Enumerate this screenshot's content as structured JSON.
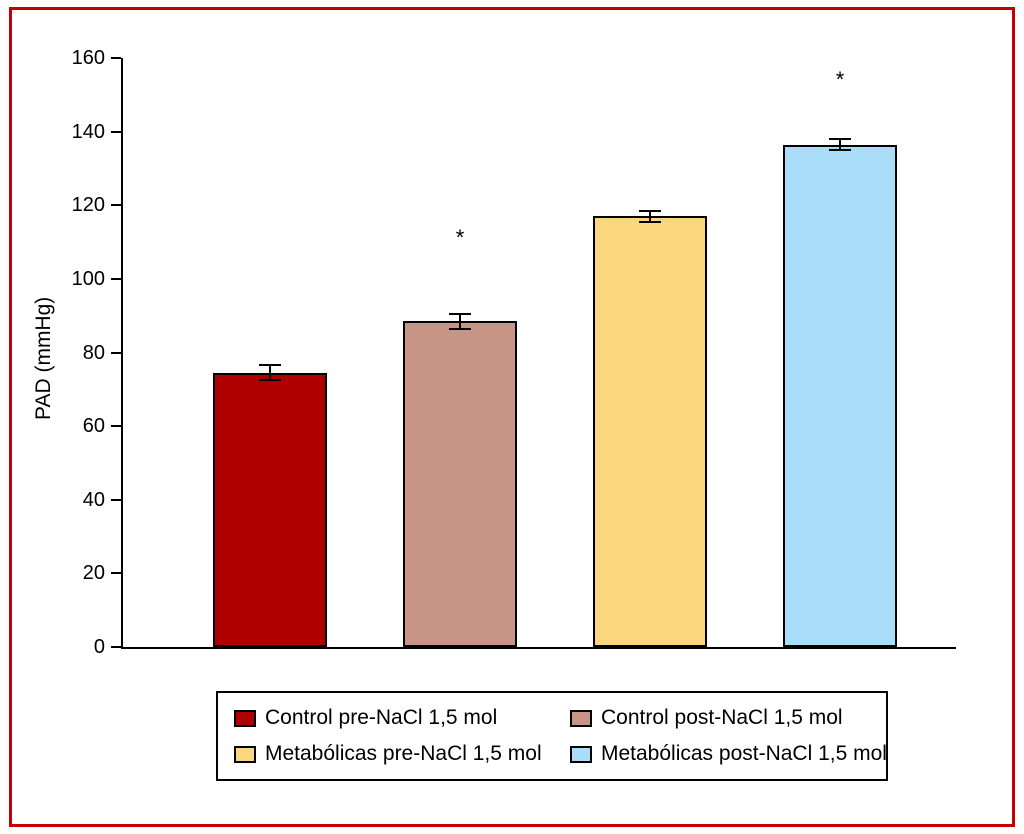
{
  "figure": {
    "border_color": "#c40000",
    "background_color": "#ffffff"
  },
  "chart_data": {
    "type": "bar",
    "title": "",
    "xlabel": "",
    "ylabel": "PAD (mmHg)",
    "ylim": [
      0,
      160
    ],
    "yticks": [
      0,
      20,
      40,
      60,
      80,
      100,
      120,
      140,
      160
    ],
    "grid": false,
    "legend_position": "bottom",
    "series": [
      {
        "name": "Control pre-NaCl 1,5 mol",
        "value": 74.5,
        "error": 2,
        "color": "#ae0000"
      },
      {
        "name": "Control post-NaCl 1,5 mol",
        "value": 88.5,
        "error": 2,
        "color": "#c79488"
      },
      {
        "name": "Metabólicas pre-NaCl 1,5 mol",
        "value": 117,
        "error": 1.5,
        "color": "#fcd67e"
      },
      {
        "name": "Metabólicas post-NaCl 1,5 mol",
        "value": 136.5,
        "error": 1.5,
        "color": "#aadef8"
      }
    ],
    "annotations": [
      {
        "bar_index": 1,
        "text": "*",
        "y": 111
      },
      {
        "bar_index": 3,
        "text": "*",
        "y": 154
      }
    ]
  }
}
